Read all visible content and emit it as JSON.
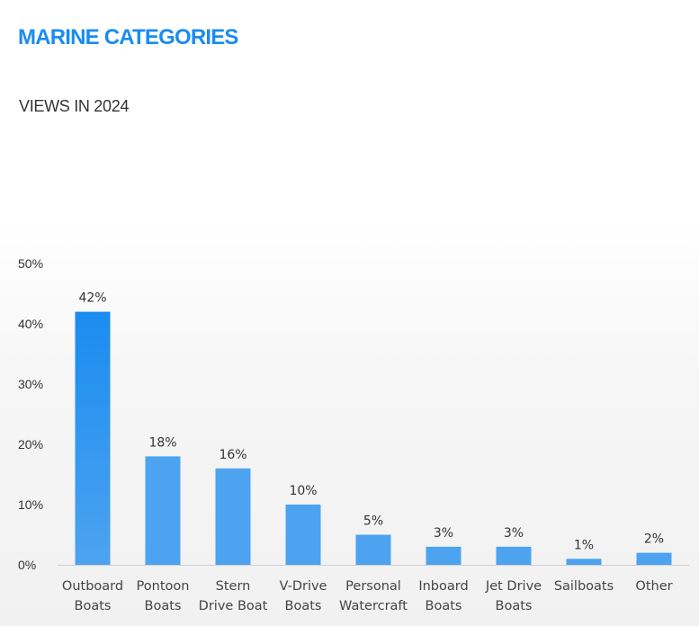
{
  "header": {
    "title": "MARINE CATEGORIES",
    "subtitle": "VIEWS IN 2024"
  },
  "colors": {
    "title": "#1a8cf0",
    "bar": "#4da3f0",
    "bar_top": "#1a8cf0",
    "axis": "#d0d0d0",
    "text": "#333333"
  },
  "chart_data": {
    "type": "bar",
    "title": "VIEWS IN 2024",
    "xlabel": "",
    "ylabel": "",
    "ylim": [
      0,
      50
    ],
    "yticks": [
      0,
      10,
      20,
      30,
      40,
      50
    ],
    "ytick_labels": [
      "0%",
      "10%",
      "20%",
      "30%",
      "40%",
      "50%"
    ],
    "grid": false,
    "categories": [
      [
        "Outboard",
        "Boats"
      ],
      [
        "Pontoon",
        "Boats"
      ],
      [
        "Stern",
        "Drive Boat"
      ],
      [
        "V-Drive",
        "Boats"
      ],
      [
        "Personal",
        "Watercraft"
      ],
      [
        "Inboard",
        "Boats"
      ],
      [
        "Jet Drive",
        "Boats"
      ],
      [
        "Sailboats"
      ],
      [
        "Other"
      ]
    ],
    "values": [
      42,
      18,
      16,
      10,
      5,
      3,
      3,
      1,
      2
    ],
    "value_labels": [
      "42%",
      "18%",
      "16%",
      "10%",
      "5%",
      "3%",
      "3%",
      "1%",
      "2%"
    ]
  }
}
